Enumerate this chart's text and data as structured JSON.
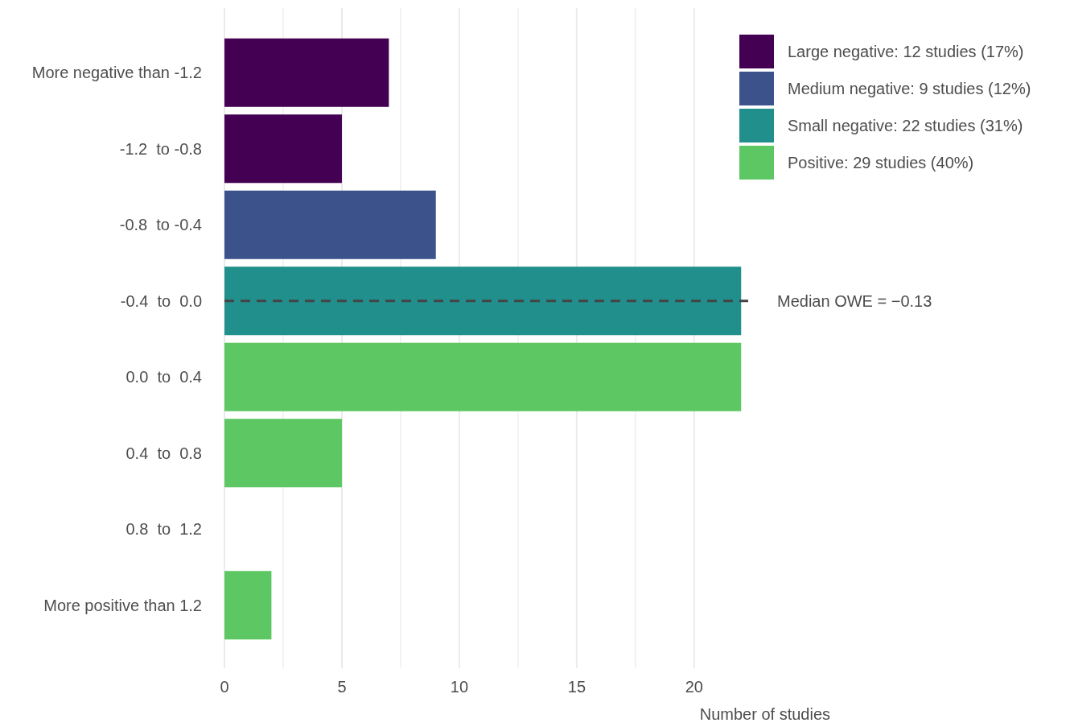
{
  "chart_data": {
    "type": "bar",
    "orientation": "horizontal",
    "xlabel": "Number of studies",
    "categories": [
      "More negative than -1.2",
      "-1.2  to -0.8",
      "-0.8  to -0.4",
      "-0.4  to  0.0",
      "0.0  to  0.4",
      "0.4  to  0.8",
      "0.8  to  1.2",
      "More positive than 1.2"
    ],
    "series": [
      {
        "name": "Large negative: 12 studies (17%)",
        "color": "#440154",
        "values": [
          7,
          5,
          null,
          null,
          null,
          null,
          null,
          null
        ]
      },
      {
        "name": "Medium negative: 9 studies (12%)",
        "color": "#3b528b",
        "values": [
          null,
          null,
          9,
          null,
          null,
          null,
          null,
          null
        ]
      },
      {
        "name": "Small negative: 22 studies (31%)",
        "color": "#21908c",
        "values": [
          null,
          null,
          null,
          22,
          null,
          null,
          null,
          null
        ]
      },
      {
        "name": "Positive: 29 studies (40%)",
        "color": "#5dc863",
        "values": [
          null,
          null,
          null,
          null,
          22,
          5,
          0,
          2
        ]
      }
    ],
    "xlim": [
      0,
      22.3
    ],
    "xticks": [
      0,
      {
        "value": 2.5,
        "label": null
      },
      5,
      {
        "value": 7.5,
        "label": null
      },
      10,
      {
        "value": 12.5,
        "label": null
      },
      15,
      {
        "value": 17.5,
        "label": null
      },
      20
    ],
    "grid": "x",
    "legend": "top right",
    "ref_lines": [
      {
        "axis": "y",
        "value": "-0.4  to  0.0",
        "label": "Median OWE = −0.13",
        "color": "#444444",
        "line_style": "dashed"
      }
    ]
  }
}
